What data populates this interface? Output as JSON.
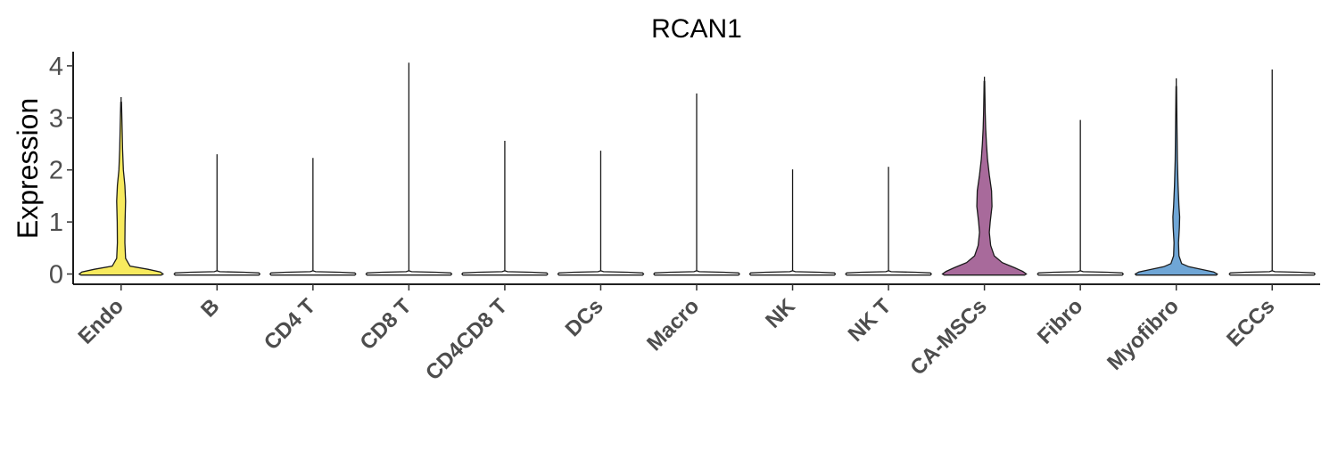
{
  "chart_data": {
    "type": "violin",
    "title": "RCAN1",
    "xlabel": "",
    "ylabel": "Expression",
    "ylim": [
      0,
      4.2
    ],
    "yticks": [
      "0",
      "1",
      "2",
      "3",
      "4"
    ],
    "grid": false,
    "legend": "none",
    "categories": [
      "Endo",
      "B",
      "CD4 T",
      "CD8 T",
      "CD4CD8 T",
      "DCs",
      "Macro",
      "NK",
      "NK T",
      "CA-MSCs",
      "Fibro",
      "Myofibro",
      "ECCs"
    ],
    "max_values": [
      3.4,
      2.3,
      2.23,
      4.06,
      2.56,
      2.37,
      3.47,
      2.01,
      2.06,
      3.79,
      2.96,
      3.76,
      3.93
    ],
    "colors": {
      "Endo": "#f7ea5e",
      "CA-MSCs": "#a86a9b",
      "Myofibro": "#6fa6d6",
      "default": "#ffffff"
    }
  }
}
